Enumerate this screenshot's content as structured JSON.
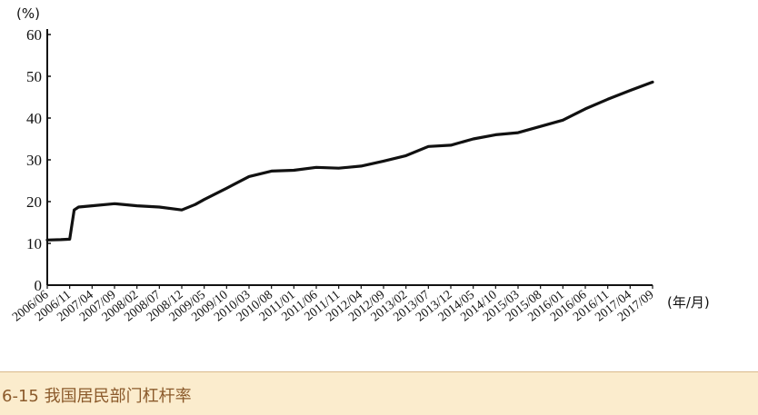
{
  "caption": "6-15 我国居民部门杠杆率",
  "chart_data": {
    "type": "line",
    "title": "",
    "y_unit_label": "(%)",
    "x_unit_label": "(年/月)",
    "ylim": [
      0,
      60
    ],
    "y_ticks": [
      0,
      10,
      20,
      30,
      40,
      50,
      60
    ],
    "categories": [
      "2006/06",
      "2006/11",
      "2007/04",
      "2007/09",
      "2008/02",
      "2008/07",
      "2008/12",
      "2009/05",
      "2009/10",
      "2010/03",
      "2010/08",
      "2011/01",
      "2011/06",
      "2011/11",
      "2012/04",
      "2012/09",
      "2013/02",
      "2013/07",
      "2013/12",
      "2014/05",
      "2014/10",
      "2015/03",
      "2015/08",
      "2016/01",
      "2016/06",
      "2016/11",
      "2017/04",
      "2017/09"
    ],
    "grid": false,
    "legend": "none",
    "line_color": "#111111",
    "series": [
      {
        "x": [
          "2006/06",
          "2006/09",
          "2006/11",
          "2006/12",
          "2007/01",
          "2007/04",
          "2007/09",
          "2008/02",
          "2008/07",
          "2008/12",
          "2009/03",
          "2009/05",
          "2009/10",
          "2010/03",
          "2010/08",
          "2011/01",
          "2011/06",
          "2011/11",
          "2012/04",
          "2012/09",
          "2013/02",
          "2013/07",
          "2013/12",
          "2014/05",
          "2014/10",
          "2015/03",
          "2015/08",
          "2016/01",
          "2016/06",
          "2016/11",
          "2017/04",
          "2017/09"
        ],
        "values": [
          10.8,
          10.9,
          11.0,
          18.0,
          18.7,
          19.0,
          19.5,
          19.0,
          18.7,
          18.0,
          19.3,
          20.5,
          23.2,
          26.0,
          27.3,
          27.5,
          28.2,
          28.0,
          28.5,
          29.7,
          31.0,
          33.2,
          33.5,
          35.0,
          36.0,
          36.5,
          38.0,
          39.5,
          42.2,
          44.5,
          46.6,
          48.6
        ]
      }
    ]
  }
}
